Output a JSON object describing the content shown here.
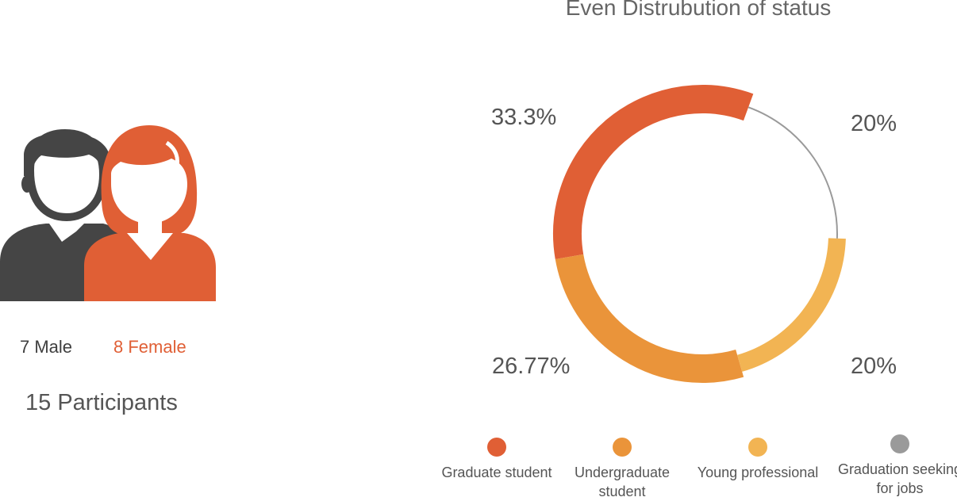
{
  "people": {
    "male_label": "7 Male",
    "female_label": "8 Female",
    "total_label": "15 Participants",
    "male_color": "#454545",
    "female_color": "#e05f35",
    "skin_color": "#ffffff"
  },
  "chart_data": {
    "type": "pie",
    "title": "Even Distrubution of status",
    "style": "donut",
    "series": [
      {
        "name": "Graduate student",
        "value": 33.3,
        "label": "33.3%",
        "color": "#e05f35",
        "slice_start_pct": 0
      },
      {
        "name": "Undergraduate student",
        "value": 26.77,
        "label": "26.77%",
        "color": "#ea943a",
        "slice_start_pct": 33.3
      },
      {
        "name": "Young professional",
        "value": 20,
        "label": "20%",
        "color": "#f2b453",
        "slice_start_pct": 60.07
      },
      {
        "name": "Graduation seeking for jobs",
        "value": 20,
        "label": "20%",
        "color": "#9a9a9a",
        "slice_start_pct": 80.07
      }
    ],
    "start_angle_deg": 20,
    "direction": "counterclockwise",
    "legend_position": "bottom"
  }
}
